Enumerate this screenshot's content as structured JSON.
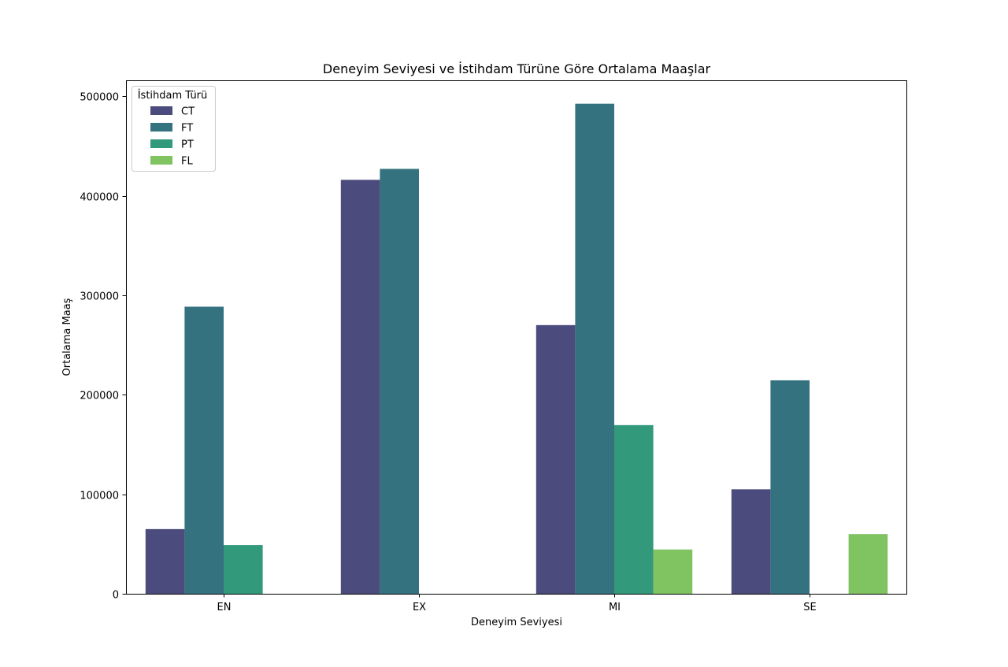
{
  "chart_data": {
    "type": "bar",
    "title": "Deneyim Seviyesi ve İstihdam Türüne Göre Ortalama Maaşlar",
    "xlabel": "Deneyim Seviyesi",
    "ylabel": "Ortalama Maaş",
    "categories": [
      "EN",
      "EX",
      "MI",
      "SE"
    ],
    "ylim": [
      0,
      516000
    ],
    "yticks": [
      0,
      100000,
      200000,
      300000,
      400000,
      500000
    ],
    "ytick_labels": [
      "0",
      "100000",
      "200000",
      "300000",
      "400000",
      "500000"
    ],
    "grid": false,
    "legend": {
      "title": "İstihdam Türü",
      "position": "top-left"
    },
    "series": [
      {
        "name": "CT",
        "color": "#4b4c7d",
        "values": [
          65000,
          416000,
          270000,
          105000
        ]
      },
      {
        "name": "FT",
        "color": "#357280",
        "values": [
          288500,
          427000,
          492500,
          214500
        ]
      },
      {
        "name": "PT",
        "color": "#32997a",
        "values": [
          49000,
          null,
          169500,
          null
        ]
      },
      {
        "name": "FL",
        "color": "#80c361",
        "values": [
          null,
          null,
          44500,
          60000
        ]
      }
    ]
  }
}
